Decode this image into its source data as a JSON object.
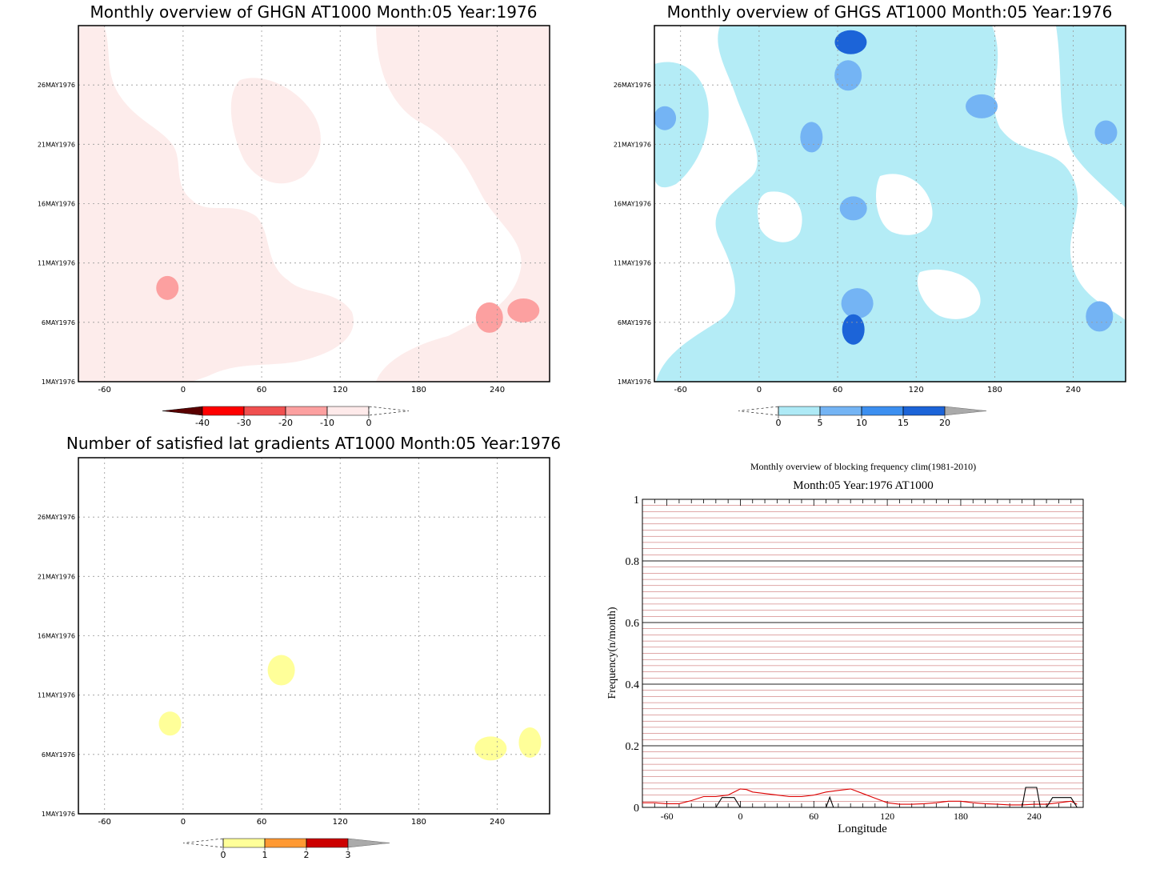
{
  "chart_data": [
    {
      "type": "heatmap",
      "title": "Monthly overview of GHGN AT1000 Month:05 Year:1976",
      "x_ticks": [
        "-60",
        "0",
        "60",
        "120",
        "180",
        "240"
      ],
      "y_ticks": [
        "1MAY1976",
        "6MAY1976",
        "11MAY1976",
        "16MAY1976",
        "21MAY1976",
        "26MAY1976"
      ],
      "xlim": [
        -80,
        280
      ],
      "ylim": [
        1,
        31
      ],
      "grid": true,
      "colorbar": {
        "labels": [
          "-40",
          "-30",
          "-20",
          "-10",
          "0"
        ],
        "colors": [
          "#5a0000",
          "#ff0000",
          "#f05050",
          "#fca0a0",
          "#feeaea"
        ]
      },
      "fill_color": "#fdeceb",
      "patches": [
        {
          "x": -12,
          "y": 8.9,
          "value": -15,
          "color": "#fca0a0"
        },
        {
          "x": 234,
          "y": 6.4,
          "value": -15,
          "color": "#fca0a0"
        },
        {
          "x": 260,
          "y": 7.0,
          "value": -15,
          "color": "#fca0a0"
        }
      ]
    },
    {
      "type": "heatmap",
      "title": "Monthly overview of GHGS AT1000 Month:05 Year:1976",
      "x_ticks": [
        "-60",
        "0",
        "60",
        "120",
        "180",
        "240"
      ],
      "y_ticks": [
        "1MAY1976",
        "6MAY1976",
        "11MAY1976",
        "16MAY1976",
        "21MAY1976",
        "26MAY1976"
      ],
      "xlim": [
        -80,
        280
      ],
      "ylim": [
        1,
        31
      ],
      "grid": true,
      "colorbar": {
        "labels": [
          "0",
          "5",
          "10",
          "15",
          "20"
        ],
        "colors": [
          "#aeeaf6",
          "#74b4f4",
          "#3c8ff0",
          "#1c64d8",
          "#aaaaaa"
        ]
      },
      "fill_color": "#b4ecf6",
      "patches": [
        {
          "x": -72,
          "y": 23.2,
          "value": 7,
          "color": "#74b4f4"
        },
        {
          "x": 68,
          "y": 26.8,
          "value": 7,
          "color": "#74b4f4"
        },
        {
          "x": 170,
          "y": 24.2,
          "value": 7,
          "color": "#74b4f4"
        },
        {
          "x": 40,
          "y": 21.6,
          "value": 7,
          "color": "#74b4f4"
        },
        {
          "x": 72,
          "y": 15.6,
          "value": 7,
          "color": "#74b4f4"
        },
        {
          "x": 75,
          "y": 7.6,
          "value": 7,
          "color": "#74b4f4"
        },
        {
          "x": 265,
          "y": 22.0,
          "value": 7,
          "color": "#74b4f4"
        },
        {
          "x": 260,
          "y": 6.5,
          "value": 7,
          "color": "#74b4f4"
        },
        {
          "x": 70,
          "y": 29.6,
          "value": 17,
          "color": "#1c64d8"
        },
        {
          "x": 72,
          "y": 5.4,
          "value": 17,
          "color": "#1c64d8"
        }
      ]
    },
    {
      "type": "heatmap",
      "title": "Number of satisfied lat gradients AT1000 Month:05 Year:1976",
      "x_ticks": [
        "-60",
        "0",
        "60",
        "120",
        "180",
        "240"
      ],
      "y_ticks": [
        "1MAY1976",
        "6MAY1976",
        "11MAY1976",
        "16MAY1976",
        "21MAY1976",
        "26MAY1976"
      ],
      "xlim": [
        -80,
        280
      ],
      "ylim": [
        1,
        31
      ],
      "grid": true,
      "colorbar": {
        "labels": [
          "0",
          "1",
          "2",
          "3"
        ],
        "colors": [
          "#ffff99",
          "#ff9933",
          "#cc0000",
          "#aaaaaa"
        ]
      },
      "patches": [
        {
          "x": -10,
          "y": 8.6,
          "value": 0.5,
          "color": "#ffff99"
        },
        {
          "x": 75,
          "y": 13.1,
          "value": 0.5,
          "color": "#ffff99"
        },
        {
          "x": 235,
          "y": 6.5,
          "value": 0.5,
          "color": "#ffff99"
        },
        {
          "x": 265,
          "y": 7.0,
          "value": 0.5,
          "color": "#ffff99"
        }
      ]
    },
    {
      "type": "line",
      "title": "Monthly overview of blocking frequency clim(1981-2010)",
      "subtitle": "Month:05 Year:1976  AT1000",
      "xlabel": "Longitude",
      "ylabel": "Frequency(n/month)",
      "x_ticks": [
        "-60",
        "0",
        "60",
        "120",
        "180",
        "240"
      ],
      "y_ticks": [
        "0",
        "0.2",
        "0.4",
        "0.6",
        "0.8",
        "1"
      ],
      "xlim": [
        -80,
        280
      ],
      "ylim": [
        0,
        1
      ],
      "series": [
        {
          "color": "#dd0000",
          "x": [
            -80,
            -70,
            -60,
            -50,
            -40,
            -30,
            -20,
            -10,
            -5,
            0,
            5,
            10,
            20,
            30,
            40,
            50,
            60,
            70,
            80,
            90,
            100,
            110,
            120,
            130,
            140,
            150,
            160,
            170,
            180,
            190,
            200,
            210,
            220,
            230,
            240,
            250,
            260,
            270,
            275
          ],
          "y": [
            0.015,
            0.015,
            0.012,
            0.012,
            0.022,
            0.035,
            0.035,
            0.04,
            0.05,
            0.06,
            0.058,
            0.05,
            0.045,
            0.04,
            0.035,
            0.035,
            0.04,
            0.05,
            0.055,
            0.06,
            0.045,
            0.03,
            0.015,
            0.01,
            0.01,
            0.012,
            0.015,
            0.02,
            0.02,
            0.015,
            0.012,
            0.01,
            0.008,
            0.008,
            0.01,
            0.01,
            0.015,
            0.02,
            0.01
          ]
        },
        {
          "color": "#000000",
          "x": [
            -80,
            -20,
            -15,
            -5,
            0,
            5,
            70,
            73,
            76,
            80,
            230,
            233,
            242,
            245,
            250,
            255,
            270,
            275
          ],
          "y": [
            0,
            0,
            0.032,
            0.032,
            0,
            0,
            0,
            0.033,
            0,
            0,
            0,
            0.065,
            0.065,
            0,
            0,
            0.032,
            0.032,
            0
          ]
        }
      ]
    }
  ]
}
